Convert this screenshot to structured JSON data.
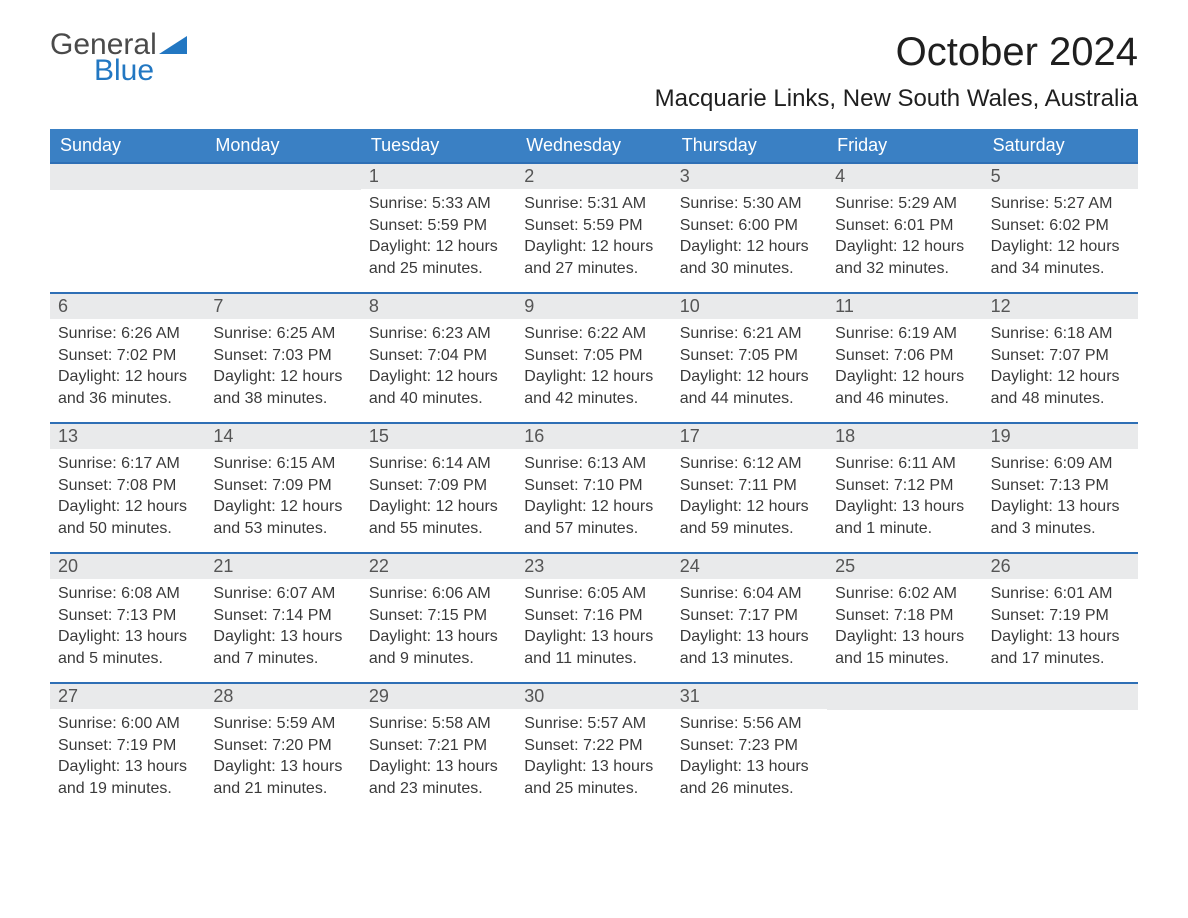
{
  "brand": {
    "word1": "General",
    "word2": "Blue"
  },
  "title": "October 2024",
  "location": "Macquarie Links, New South Wales, Australia",
  "colors": {
    "header_blue": "#3a80c4",
    "accent_blue": "#2e6fb5",
    "row_gray": "#e9eaeb",
    "text_dark": "#3a3a3a",
    "logo_gray": "#4a4a4a",
    "logo_blue": "#2277c2",
    "background": "#ffffff"
  },
  "daysOfWeek": [
    "Sunday",
    "Monday",
    "Tuesday",
    "Wednesday",
    "Thursday",
    "Friday",
    "Saturday"
  ],
  "grid": [
    {
      "blank": true
    },
    {
      "blank": true
    },
    {
      "n": "1",
      "sr": "Sunrise: 5:33 AM",
      "ss": "Sunset: 5:59 PM",
      "d1": "Daylight: 12 hours",
      "d2": "and 25 minutes."
    },
    {
      "n": "2",
      "sr": "Sunrise: 5:31 AM",
      "ss": "Sunset: 5:59 PM",
      "d1": "Daylight: 12 hours",
      "d2": "and 27 minutes."
    },
    {
      "n": "3",
      "sr": "Sunrise: 5:30 AM",
      "ss": "Sunset: 6:00 PM",
      "d1": "Daylight: 12 hours",
      "d2": "and 30 minutes."
    },
    {
      "n": "4",
      "sr": "Sunrise: 5:29 AM",
      "ss": "Sunset: 6:01 PM",
      "d1": "Daylight: 12 hours",
      "d2": "and 32 minutes."
    },
    {
      "n": "5",
      "sr": "Sunrise: 5:27 AM",
      "ss": "Sunset: 6:02 PM",
      "d1": "Daylight: 12 hours",
      "d2": "and 34 minutes."
    },
    {
      "n": "6",
      "sr": "Sunrise: 6:26 AM",
      "ss": "Sunset: 7:02 PM",
      "d1": "Daylight: 12 hours",
      "d2": "and 36 minutes."
    },
    {
      "n": "7",
      "sr": "Sunrise: 6:25 AM",
      "ss": "Sunset: 7:03 PM",
      "d1": "Daylight: 12 hours",
      "d2": "and 38 minutes."
    },
    {
      "n": "8",
      "sr": "Sunrise: 6:23 AM",
      "ss": "Sunset: 7:04 PM",
      "d1": "Daylight: 12 hours",
      "d2": "and 40 minutes."
    },
    {
      "n": "9",
      "sr": "Sunrise: 6:22 AM",
      "ss": "Sunset: 7:05 PM",
      "d1": "Daylight: 12 hours",
      "d2": "and 42 minutes."
    },
    {
      "n": "10",
      "sr": "Sunrise: 6:21 AM",
      "ss": "Sunset: 7:05 PM",
      "d1": "Daylight: 12 hours",
      "d2": "and 44 minutes."
    },
    {
      "n": "11",
      "sr": "Sunrise: 6:19 AM",
      "ss": "Sunset: 7:06 PM",
      "d1": "Daylight: 12 hours",
      "d2": "and 46 minutes."
    },
    {
      "n": "12",
      "sr": "Sunrise: 6:18 AM",
      "ss": "Sunset: 7:07 PM",
      "d1": "Daylight: 12 hours",
      "d2": "and 48 minutes."
    },
    {
      "n": "13",
      "sr": "Sunrise: 6:17 AM",
      "ss": "Sunset: 7:08 PM",
      "d1": "Daylight: 12 hours",
      "d2": "and 50 minutes."
    },
    {
      "n": "14",
      "sr": "Sunrise: 6:15 AM",
      "ss": "Sunset: 7:09 PM",
      "d1": "Daylight: 12 hours",
      "d2": "and 53 minutes."
    },
    {
      "n": "15",
      "sr": "Sunrise: 6:14 AM",
      "ss": "Sunset: 7:09 PM",
      "d1": "Daylight: 12 hours",
      "d2": "and 55 minutes."
    },
    {
      "n": "16",
      "sr": "Sunrise: 6:13 AM",
      "ss": "Sunset: 7:10 PM",
      "d1": "Daylight: 12 hours",
      "d2": "and 57 minutes."
    },
    {
      "n": "17",
      "sr": "Sunrise: 6:12 AM",
      "ss": "Sunset: 7:11 PM",
      "d1": "Daylight: 12 hours",
      "d2": "and 59 minutes."
    },
    {
      "n": "18",
      "sr": "Sunrise: 6:11 AM",
      "ss": "Sunset: 7:12 PM",
      "d1": "Daylight: 13 hours",
      "d2": "and 1 minute."
    },
    {
      "n": "19",
      "sr": "Sunrise: 6:09 AM",
      "ss": "Sunset: 7:13 PM",
      "d1": "Daylight: 13 hours",
      "d2": "and 3 minutes."
    },
    {
      "n": "20",
      "sr": "Sunrise: 6:08 AM",
      "ss": "Sunset: 7:13 PM",
      "d1": "Daylight: 13 hours",
      "d2": "and 5 minutes."
    },
    {
      "n": "21",
      "sr": "Sunrise: 6:07 AM",
      "ss": "Sunset: 7:14 PM",
      "d1": "Daylight: 13 hours",
      "d2": "and 7 minutes."
    },
    {
      "n": "22",
      "sr": "Sunrise: 6:06 AM",
      "ss": "Sunset: 7:15 PM",
      "d1": "Daylight: 13 hours",
      "d2": "and 9 minutes."
    },
    {
      "n": "23",
      "sr": "Sunrise: 6:05 AM",
      "ss": "Sunset: 7:16 PM",
      "d1": "Daylight: 13 hours",
      "d2": "and 11 minutes."
    },
    {
      "n": "24",
      "sr": "Sunrise: 6:04 AM",
      "ss": "Sunset: 7:17 PM",
      "d1": "Daylight: 13 hours",
      "d2": "and 13 minutes."
    },
    {
      "n": "25",
      "sr": "Sunrise: 6:02 AM",
      "ss": "Sunset: 7:18 PM",
      "d1": "Daylight: 13 hours",
      "d2": "and 15 minutes."
    },
    {
      "n": "26",
      "sr": "Sunrise: 6:01 AM",
      "ss": "Sunset: 7:19 PM",
      "d1": "Daylight: 13 hours",
      "d2": "and 17 minutes."
    },
    {
      "n": "27",
      "sr": "Sunrise: 6:00 AM",
      "ss": "Sunset: 7:19 PM",
      "d1": "Daylight: 13 hours",
      "d2": "and 19 minutes."
    },
    {
      "n": "28",
      "sr": "Sunrise: 5:59 AM",
      "ss": "Sunset: 7:20 PM",
      "d1": "Daylight: 13 hours",
      "d2": "and 21 minutes."
    },
    {
      "n": "29",
      "sr": "Sunrise: 5:58 AM",
      "ss": "Sunset: 7:21 PM",
      "d1": "Daylight: 13 hours",
      "d2": "and 23 minutes."
    },
    {
      "n": "30",
      "sr": "Sunrise: 5:57 AM",
      "ss": "Sunset: 7:22 PM",
      "d1": "Daylight: 13 hours",
      "d2": "and 25 minutes."
    },
    {
      "n": "31",
      "sr": "Sunrise: 5:56 AM",
      "ss": "Sunset: 7:23 PM",
      "d1": "Daylight: 13 hours",
      "d2": "and 26 minutes."
    },
    {
      "blank": true
    },
    {
      "blank": true
    }
  ]
}
